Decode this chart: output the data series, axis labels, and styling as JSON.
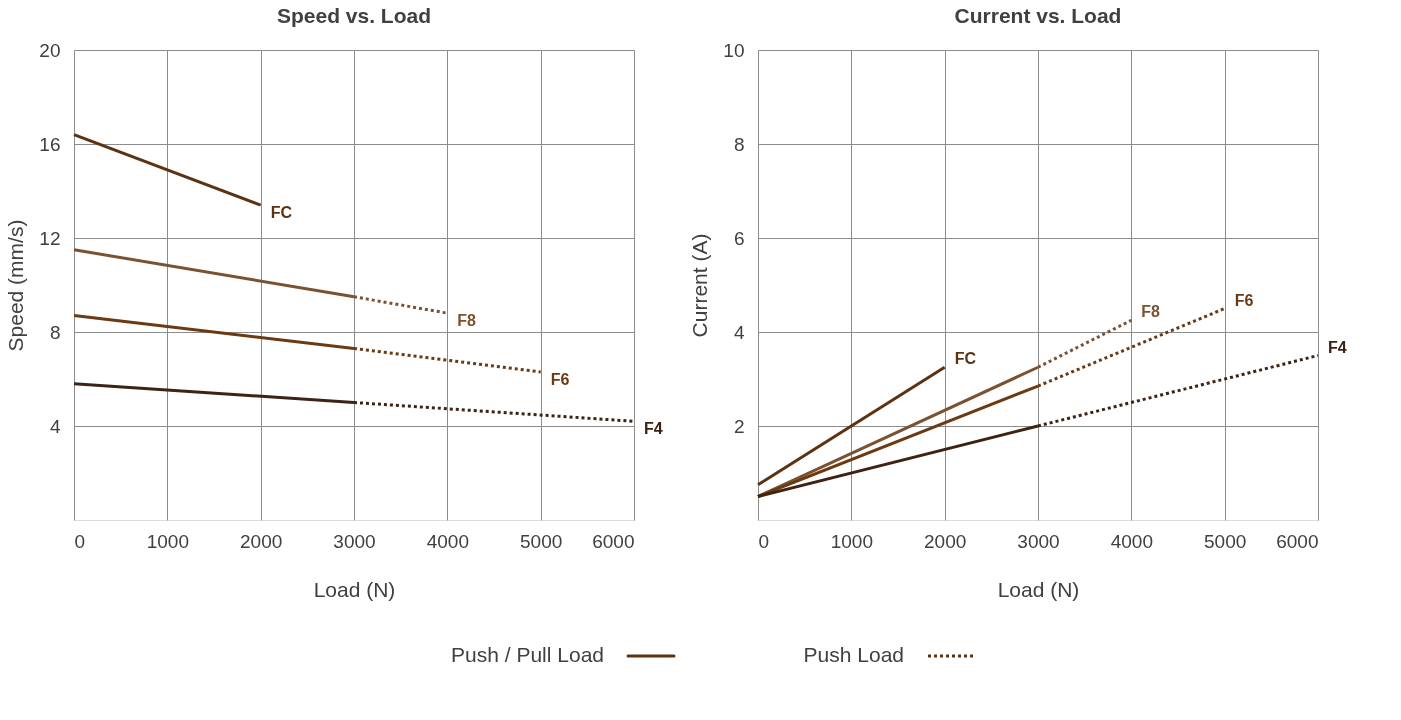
{
  "chart_data": [
    {
      "type": "line",
      "title": "Speed vs. Load",
      "xlabel": "Load (N)",
      "ylabel": "Speed (mm/s)",
      "xlim": [
        0,
        6000
      ],
      "xticks": [
        0,
        1000,
        2000,
        3000,
        4000,
        5000,
        6000
      ],
      "ylim": [
        0,
        20
      ],
      "yticks": [
        4,
        8,
        12,
        16,
        20
      ],
      "grid": true,
      "legend": "bottom",
      "marker": "none",
      "annotations": [
        "Push / Pull Load",
        "Push Load"
      ],
      "series": [
        {
          "name": "FC",
          "color": "#5c3312",
          "x": [
            0,
            2000
          ],
          "values": [
            16.4,
            13.4
          ],
          "line_style": "solid"
        },
        {
          "color": "#7b5231",
          "x": [
            0,
            3000
          ],
          "values": [
            11.5,
            9.5
          ],
          "line_style": "solid"
        },
        {
          "name": "F8",
          "color": "#7b5231",
          "x": [
            3000,
            4000
          ],
          "values": [
            9.5,
            8.8
          ],
          "line_style": "dotted"
        },
        {
          "color": "#6b3a12",
          "x": [
            0,
            3000
          ],
          "values": [
            8.7,
            7.3
          ],
          "line_style": "solid"
        },
        {
          "name": "F6",
          "color": "#6b3a12",
          "x": [
            3000,
            5000
          ],
          "values": [
            7.3,
            6.3
          ],
          "line_style": "dotted"
        },
        {
          "color": "#3d2314",
          "x": [
            0,
            3000
          ],
          "values": [
            5.8,
            5.0
          ],
          "line_style": "solid"
        },
        {
          "name": "F4",
          "color": "#3d2314",
          "x": [
            3000,
            6000
          ],
          "values": [
            5.0,
            4.2
          ],
          "line_style": "dotted"
        }
      ]
    },
    {
      "type": "line",
      "title": "Current  vs. Load",
      "xlabel": "Load (N)",
      "ylabel": "Current (A)",
      "xlim": [
        0,
        6000
      ],
      "xticks": [
        0,
        1000,
        2000,
        3000,
        4000,
        5000,
        6000
      ],
      "ylim": [
        0,
        10
      ],
      "yticks": [
        2,
        4,
        6,
        8,
        10
      ],
      "grid": true,
      "marker": "none",
      "series": [
        {
          "name": "FC",
          "color": "#5c3312",
          "x": [
            0,
            2000
          ],
          "values": [
            0.75,
            3.25
          ],
          "line_style": "solid"
        },
        {
          "color": "#7b5231",
          "x": [
            0,
            3000
          ],
          "values": [
            0.5,
            3.25
          ],
          "line_style": "solid"
        },
        {
          "name": "F8",
          "color": "#7b5231",
          "x": [
            3000,
            4000
          ],
          "values": [
            3.25,
            4.25
          ],
          "line_style": "dotted"
        },
        {
          "color": "#6b3a12",
          "x": [
            0,
            3000
          ],
          "values": [
            0.5,
            2.85
          ],
          "line_style": "solid"
        },
        {
          "name": "F6",
          "color": "#6b3a12",
          "x": [
            3000,
            5000
          ],
          "values": [
            2.85,
            4.5
          ],
          "line_style": "dotted"
        },
        {
          "color": "#3d2314",
          "x": [
            0,
            3000
          ],
          "values": [
            0.5,
            2.0
          ],
          "line_style": "solid"
        },
        {
          "name": "F4",
          "color": "#3d2314",
          "x": [
            3000,
            6000
          ],
          "values": [
            2.0,
            3.5
          ],
          "line_style": "dotted"
        }
      ]
    }
  ]
}
